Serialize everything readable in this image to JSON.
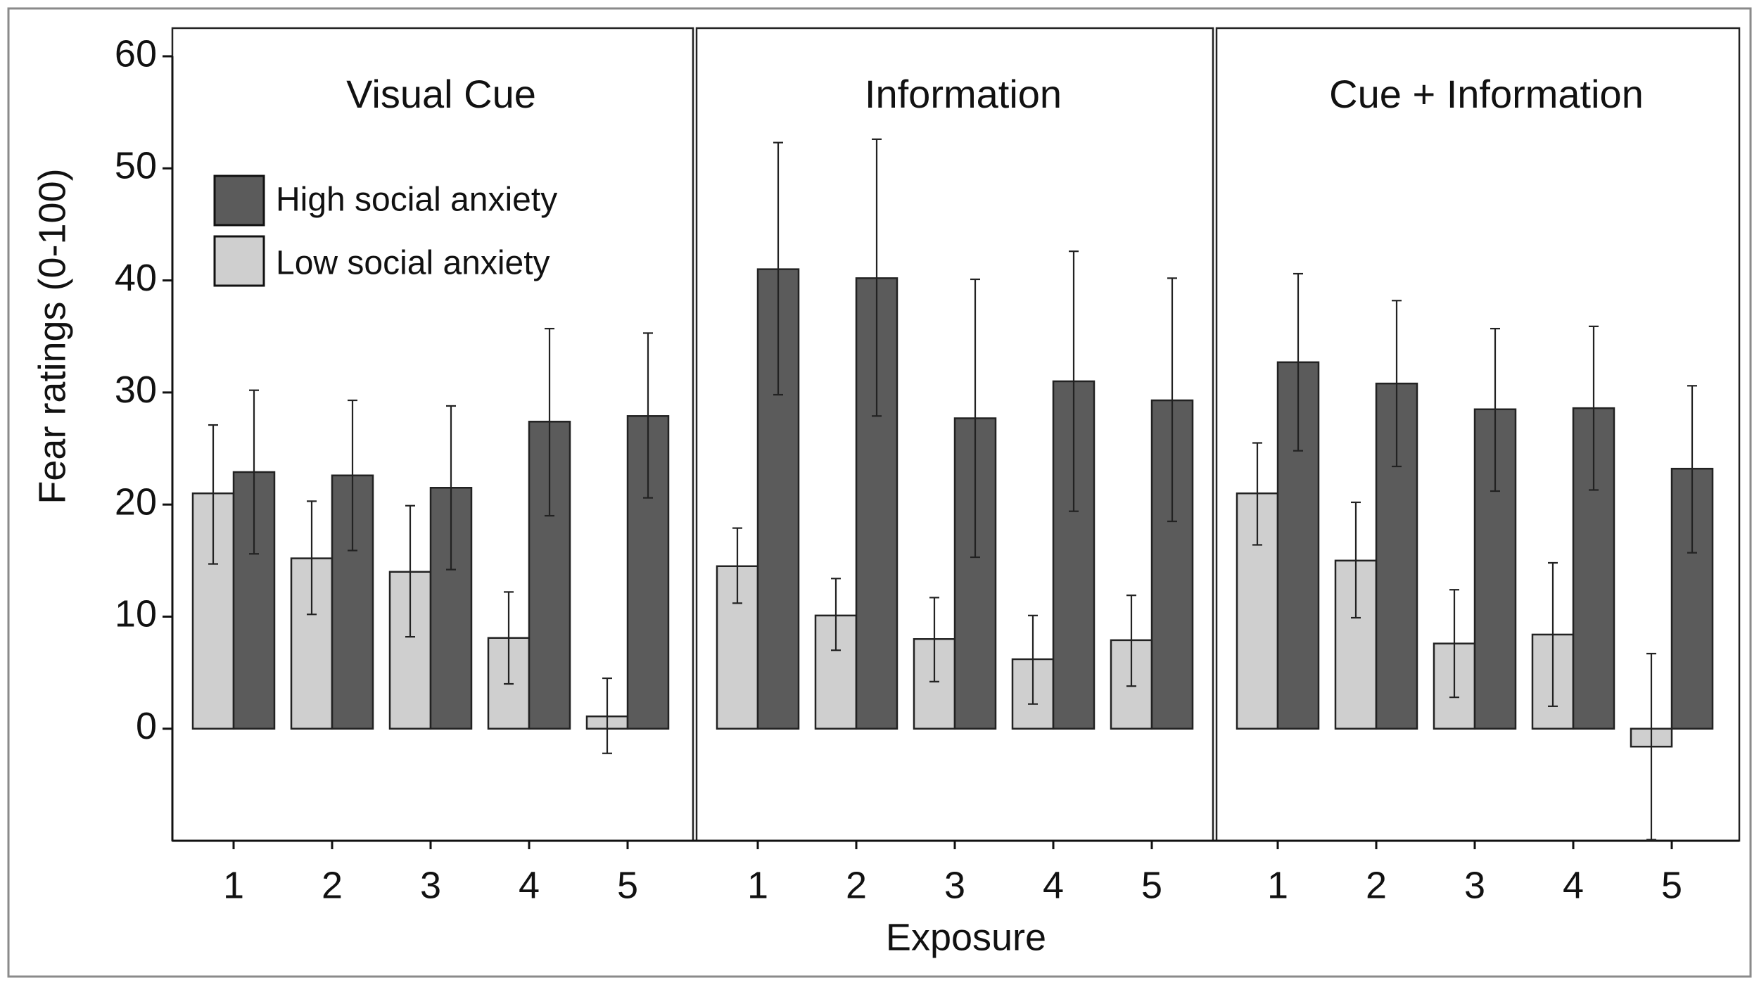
{
  "chart_data": {
    "type": "bar",
    "ylabel": "Fear ratings (0-100)",
    "xlabel": "Exposure",
    "ylim": [
      -10,
      60
    ],
    "yticks": [
      0,
      10,
      20,
      30,
      40,
      50,
      60
    ],
    "grid": false,
    "legend": {
      "placement": "top-left of first panel",
      "entries": [
        "High social anxiety",
        "Low social anxiety"
      ]
    },
    "colors": {
      "high": "#5b5b5b",
      "low": "#cfcfcf",
      "error": "#222222"
    },
    "series_names": [
      "Low social anxiety",
      "High social anxiety"
    ],
    "panels": [
      {
        "title": "Visual Cue",
        "categories": [
          "1",
          "2",
          "3",
          "4",
          "5"
        ],
        "low": {
          "values": [
            21,
            15.2,
            14,
            8.1,
            1.1
          ],
          "lower": [
            14.7,
            10.2,
            8.2,
            4.0,
            -2.2
          ],
          "upper": [
            27.1,
            20.3,
            19.9,
            12.2,
            4.5
          ]
        },
        "high": {
          "values": [
            22.9,
            22.6,
            21.5,
            27.4,
            27.9
          ],
          "lower": [
            15.6,
            15.9,
            14.2,
            19.0,
            20.6
          ],
          "upper": [
            30.2,
            29.3,
            28.8,
            35.7,
            35.3
          ]
        }
      },
      {
        "title": "Information",
        "categories": [
          "1",
          "2",
          "3",
          "4",
          "5"
        ],
        "low": {
          "values": [
            14.5,
            10.1,
            8.0,
            6.2,
            7.9
          ],
          "lower": [
            11.2,
            7.0,
            4.2,
            2.2,
            3.8
          ],
          "upper": [
            17.9,
            13.4,
            11.7,
            10.1,
            11.9
          ]
        },
        "high": {
          "values": [
            41.0,
            40.2,
            27.7,
            31.0,
            29.3
          ],
          "lower": [
            29.8,
            27.9,
            15.3,
            19.4,
            18.5
          ],
          "upper": [
            52.3,
            52.6,
            40.1,
            42.6,
            40.2
          ]
        }
      },
      {
        "title": "Cue + Information",
        "categories": [
          "1",
          "2",
          "3",
          "4",
          "5"
        ],
        "low": {
          "values": [
            21.0,
            15.0,
            7.6,
            8.4,
            -1.6
          ],
          "lower": [
            16.4,
            9.9,
            2.8,
            2.0,
            -9.9
          ],
          "upper": [
            25.5,
            20.2,
            12.4,
            14.8,
            6.7
          ]
        },
        "high": {
          "values": [
            32.7,
            30.8,
            28.5,
            28.6,
            23.2
          ],
          "lower": [
            24.8,
            23.4,
            21.2,
            21.3,
            15.7
          ],
          "upper": [
            40.6,
            38.2,
            35.7,
            35.9,
            30.6
          ]
        }
      }
    ]
  }
}
